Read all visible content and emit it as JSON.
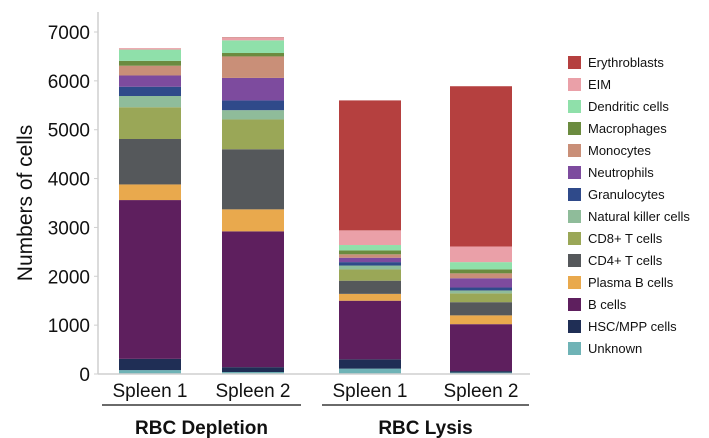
{
  "chart_data": {
    "type": "bar",
    "stacked": true,
    "title": "",
    "ylabel": "Numbers of cells",
    "xlabel": "",
    "ylim": [
      0,
      7000
    ],
    "yticks": [
      0,
      1000,
      2000,
      3000,
      4000,
      5000,
      6000,
      7000
    ],
    "categories": [
      "Spleen 1",
      "Spleen 2",
      "Spleen 1",
      "Spleen 2"
    ],
    "groups": [
      {
        "label": "RBC Depletion",
        "categories": [
          0,
          1
        ]
      },
      {
        "label": "RBC Lysis",
        "categories": [
          2,
          3
        ]
      }
    ],
    "legend_position": "right",
    "series": [
      {
        "name": "Unknown",
        "color": "#6fb3b6",
        "values": [
          80,
          40,
          110,
          30
        ]
      },
      {
        "name": "HSC/MPP cells",
        "color": "#1f2e55",
        "values": [
          230,
          100,
          190,
          30
        ]
      },
      {
        "name": "B cells",
        "color": "#5e1f5e",
        "values": [
          3250,
          2780,
          1200,
          960
        ]
      },
      {
        "name": "Plasma B cells",
        "color": "#e9a94d",
        "values": [
          320,
          450,
          140,
          180
        ]
      },
      {
        "name": "CD4+ T cells",
        "color": "#55585b",
        "values": [
          930,
          1230,
          270,
          270
        ]
      },
      {
        "name": "CD8+ T cells",
        "color": "#9aa757",
        "values": [
          650,
          610,
          230,
          180
        ]
      },
      {
        "name": "Natural killer cells",
        "color": "#8fbc9a",
        "values": [
          230,
          190,
          80,
          60
        ]
      },
      {
        "name": "Granulocytes",
        "color": "#2f4a8a",
        "values": [
          190,
          200,
          70,
          60
        ]
      },
      {
        "name": "Neutrophils",
        "color": "#7d4b9e",
        "values": [
          230,
          460,
          90,
          190
        ]
      },
      {
        "name": "Monocytes",
        "color": "#c98f78",
        "values": [
          200,
          440,
          70,
          100
        ]
      },
      {
        "name": "Macrophages",
        "color": "#6b8b3f",
        "values": [
          100,
          70,
          80,
          80
        ]
      },
      {
        "name": "Dendritic cells",
        "color": "#8fe0aa",
        "values": [
          230,
          260,
          110,
          150
        ]
      },
      {
        "name": "EIM",
        "color": "#eaa0a8",
        "values": [
          30,
          50,
          300,
          320
        ]
      },
      {
        "name": "Erythroblasts",
        "color": "#b5403f",
        "values": [
          0,
          10,
          2660,
          3280
        ]
      }
    ]
  }
}
